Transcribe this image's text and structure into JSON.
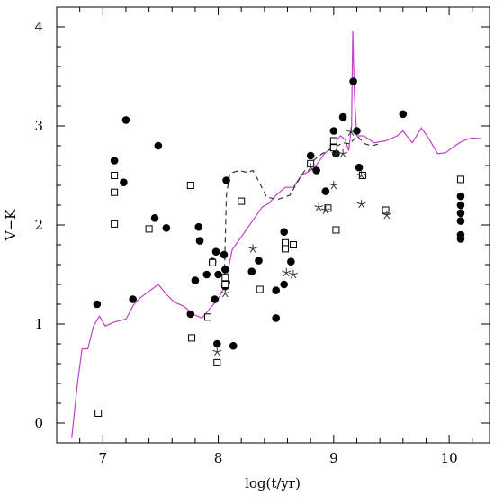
{
  "chart_data": {
    "type": "scatter",
    "xlabel": "log(t/yr)",
    "ylabel": "V−K",
    "xlim": [
      6.6,
      10.35
    ],
    "ylim": [
      -0.2,
      4.2
    ],
    "x_ticks": [
      {
        "value": 7,
        "label": "7"
      },
      {
        "value": 8,
        "label": "8"
      },
      {
        "value": 9,
        "label": "9"
      },
      {
        "value": 10,
        "label": "10"
      }
    ],
    "y_ticks": [
      {
        "value": 0,
        "label": "0"
      },
      {
        "value": 1,
        "label": "1"
      },
      {
        "value": 2,
        "label": "2"
      },
      {
        "value": 3,
        "label": "3"
      },
      {
        "value": 4,
        "label": "4"
      }
    ],
    "grid": false,
    "colors": {
      "model_solid": "#c040c8",
      "model_dashed": "#333333",
      "points": "#000000"
    },
    "series": [
      {
        "marker": "filled-circle",
        "points": [
          [
            6.95,
            1.2
          ],
          [
            7.1,
            2.65
          ],
          [
            7.18,
            2.43
          ],
          [
            7.2,
            3.06
          ],
          [
            7.26,
            1.25
          ],
          [
            7.45,
            2.07
          ],
          [
            7.48,
            2.8
          ],
          [
            7.55,
            1.97
          ],
          [
            7.76,
            1.1
          ],
          [
            7.8,
            1.44
          ],
          [
            7.83,
            1.98
          ],
          [
            7.84,
            1.84
          ],
          [
            7.9,
            1.5
          ],
          [
            7.95,
            1.63
          ],
          [
            7.97,
            1.25
          ],
          [
            7.98,
            1.73
          ],
          [
            7.99,
            0.8
          ],
          [
            8.0,
            1.5
          ],
          [
            8.05,
            1.7
          ],
          [
            8.06,
            1.55
          ],
          [
            8.06,
            1.38
          ],
          [
            8.07,
            1.42
          ],
          [
            8.13,
            0.78
          ],
          [
            8.07,
            2.45
          ],
          [
            8.29,
            1.53
          ],
          [
            8.35,
            1.64
          ],
          [
            8.5,
            1.06
          ],
          [
            8.5,
            1.34
          ],
          [
            8.57,
            1.93
          ],
          [
            8.57,
            1.4
          ],
          [
            8.63,
            1.63
          ],
          [
            8.8,
            2.7
          ],
          [
            8.85,
            2.55
          ],
          [
            8.93,
            2.34
          ],
          [
            9.0,
            2.95
          ],
          [
            9.0,
            2.8
          ],
          [
            9.02,
            2.72
          ],
          [
            9.08,
            3.09
          ],
          [
            9.17,
            3.45
          ],
          [
            9.2,
            2.95
          ],
          [
            9.22,
            2.58
          ],
          [
            9.6,
            3.12
          ],
          [
            10.1,
            2.29
          ],
          [
            10.1,
            2.2
          ],
          [
            10.1,
            2.12
          ],
          [
            10.1,
            2.04
          ],
          [
            10.1,
            1.9
          ],
          [
            10.1,
            1.86
          ]
        ]
      },
      {
        "marker": "open-square",
        "points": [
          [
            6.96,
            0.1
          ],
          [
            7.1,
            2.5
          ],
          [
            7.1,
            2.33
          ],
          [
            7.1,
            2.01
          ],
          [
            7.4,
            1.96
          ],
          [
            7.76,
            2.4
          ],
          [
            7.77,
            0.86
          ],
          [
            7.91,
            1.07
          ],
          [
            7.95,
            1.62
          ],
          [
            7.99,
            0.61
          ],
          [
            8.06,
            1.47
          ],
          [
            8.06,
            1.4
          ],
          [
            8.2,
            2.24
          ],
          [
            8.36,
            1.35
          ],
          [
            8.58,
            1.82
          ],
          [
            8.58,
            1.76
          ],
          [
            8.65,
            1.8
          ],
          [
            8.8,
            2.62
          ],
          [
            8.95,
            2.17
          ],
          [
            9.0,
            2.85
          ],
          [
            9.0,
            2.78
          ],
          [
            9.02,
            1.95
          ],
          [
            9.25,
            2.5
          ],
          [
            9.45,
            2.15
          ],
          [
            10.1,
            2.46
          ]
        ]
      },
      {
        "marker": "asterisk",
        "points": [
          [
            7.99,
            0.72
          ],
          [
            8.06,
            1.31
          ],
          [
            8.3,
            1.76
          ],
          [
            8.59,
            1.52
          ],
          [
            8.65,
            1.5
          ],
          [
            8.8,
            2.58
          ],
          [
            8.87,
            2.18
          ],
          [
            8.93,
            2.15
          ],
          [
            9.0,
            2.4
          ],
          [
            9.02,
            2.72
          ],
          [
            9.08,
            2.72
          ],
          [
            9.15,
            2.94
          ],
          [
            9.24,
            2.21
          ],
          [
            9.24,
            2.5
          ],
          [
            9.46,
            2.1
          ]
        ]
      }
    ],
    "model_curves": [
      {
        "style": "solid",
        "points": [
          [
            6.73,
            -0.15
          ],
          [
            6.78,
            0.4
          ],
          [
            6.82,
            0.75
          ],
          [
            6.87,
            0.75
          ],
          [
            6.92,
            0.98
          ],
          [
            6.97,
            1.08
          ],
          [
            7.02,
            0.98
          ],
          [
            7.1,
            1.02
          ],
          [
            7.2,
            1.05
          ],
          [
            7.27,
            1.2
          ],
          [
            7.33,
            1.27
          ],
          [
            7.4,
            1.33
          ],
          [
            7.48,
            1.4
          ],
          [
            7.55,
            1.3
          ],
          [
            7.62,
            1.22
          ],
          [
            7.7,
            1.18
          ],
          [
            7.78,
            1.1
          ],
          [
            7.86,
            1.06
          ],
          [
            7.93,
            1.16
          ],
          [
            8.0,
            1.25
          ],
          [
            8.06,
            1.4
          ],
          [
            8.12,
            1.75
          ],
          [
            8.2,
            1.88
          ],
          [
            8.26,
            1.98
          ],
          [
            8.32,
            2.08
          ],
          [
            8.38,
            2.18
          ],
          [
            8.44,
            2.22
          ],
          [
            8.5,
            2.3
          ],
          [
            8.58,
            2.38
          ],
          [
            8.65,
            2.38
          ],
          [
            8.72,
            2.5
          ],
          [
            8.8,
            2.55
          ],
          [
            8.86,
            2.62
          ],
          [
            8.92,
            2.72
          ],
          [
            8.98,
            2.78
          ],
          [
            9.02,
            2.85
          ],
          [
            9.06,
            2.9
          ],
          [
            9.1,
            2.86
          ],
          [
            9.13,
            2.75
          ],
          [
            9.155,
            3.0
          ],
          [
            9.165,
            3.96
          ],
          [
            9.18,
            3.3
          ],
          [
            9.2,
            2.9
          ],
          [
            9.26,
            2.9
          ],
          [
            9.35,
            2.83
          ],
          [
            9.45,
            2.85
          ],
          [
            9.55,
            2.9
          ],
          [
            9.6,
            2.95
          ],
          [
            9.68,
            2.83
          ],
          [
            9.76,
            2.98
          ],
          [
            9.82,
            2.88
          ],
          [
            9.9,
            2.72
          ],
          [
            9.97,
            2.73
          ],
          [
            10.05,
            2.8
          ],
          [
            10.12,
            2.85
          ],
          [
            10.2,
            2.88
          ],
          [
            10.28,
            2.87
          ]
        ]
      },
      {
        "style": "dashed",
        "points": [
          [
            8.05,
            1.37
          ],
          [
            8.07,
            2.3
          ],
          [
            8.1,
            2.52
          ],
          [
            8.18,
            2.55
          ],
          [
            8.25,
            2.53
          ],
          [
            8.3,
            2.55
          ],
          [
            8.36,
            2.42
          ],
          [
            8.42,
            2.28
          ],
          [
            8.52,
            2.26
          ],
          [
            8.62,
            2.3
          ],
          [
            8.72,
            2.5
          ],
          [
            8.8,
            2.63
          ],
          [
            8.9,
            2.72
          ],
          [
            9.0,
            2.78
          ],
          [
            9.08,
            2.83
          ],
          [
            9.14,
            2.82
          ],
          [
            9.2,
            2.9
          ],
          [
            9.27,
            2.82
          ],
          [
            9.33,
            2.8
          ],
          [
            9.4,
            2.82
          ]
        ]
      }
    ]
  }
}
